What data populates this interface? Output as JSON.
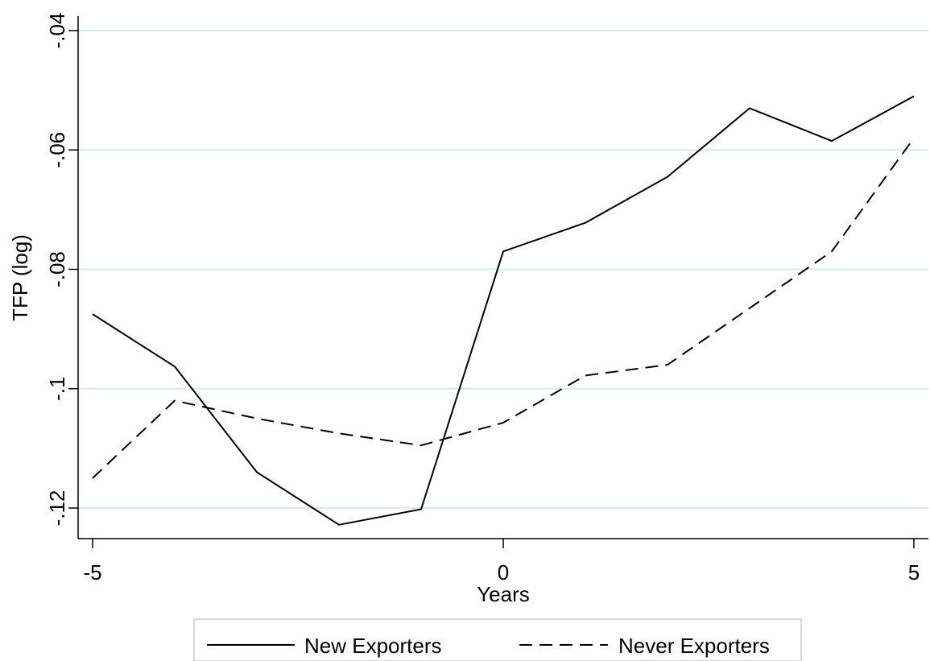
{
  "chart_data": {
    "type": "line",
    "xlabel": "Years",
    "ylabel": "TFP (log)",
    "xlim": [
      -5,
      5
    ],
    "ylim": [
      -0.125,
      -0.038
    ],
    "x_ticks": [
      -5,
      0,
      5
    ],
    "x_tick_labels": [
      "-5",
      "0",
      "5"
    ],
    "y_ticks": [
      -0.12,
      -0.1,
      -0.08,
      -0.06,
      -0.04
    ],
    "y_tick_labels": [
      "-.12",
      "-.1",
      "-.08",
      "-.06",
      "-.04"
    ],
    "grid": "horizontal",
    "legend_position": "bottom",
    "x": [
      -5,
      -4,
      -3,
      -2,
      -1,
      0,
      1,
      2,
      3,
      4,
      5
    ],
    "series": [
      {
        "name": "New Exporters",
        "style": "solid",
        "color": "#000000",
        "values": [
          -0.0875,
          -0.0963,
          -0.114,
          -0.1228,
          -0.1202,
          -0.077,
          -0.0722,
          -0.0645,
          -0.053,
          -0.0585,
          -0.051
        ]
      },
      {
        "name": "Never Exporters",
        "style": "dashed",
        "color": "#000000",
        "values": [
          -0.115,
          -0.102,
          -0.105,
          -0.1075,
          -0.1095,
          -0.1057,
          -0.0978,
          -0.096,
          -0.0865,
          -0.077,
          -0.058
        ]
      }
    ]
  }
}
